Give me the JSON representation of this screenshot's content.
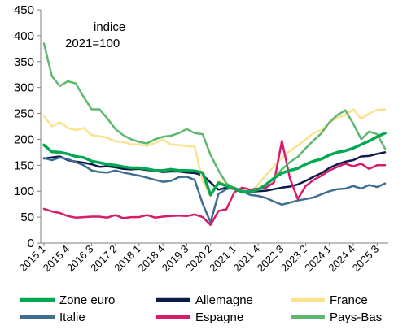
{
  "chart_data": {
    "type": "line",
    "annotation": "indice\n2021=100",
    "xlabel": "",
    "ylabel": "",
    "ylim": [
      0,
      450
    ],
    "yticks": [
      0,
      50,
      100,
      150,
      200,
      250,
      300,
      350,
      400,
      450
    ],
    "grid": false,
    "legend_position": "bottom",
    "x": [
      "2015 1",
      "2015 2",
      "2015 3",
      "2015 4",
      "2016 1",
      "2016 2",
      "2016 3",
      "2016 4",
      "2017 1",
      "2017 2",
      "2017 3",
      "2017 4",
      "2018 1",
      "2018 2",
      "2018 3",
      "2018 4",
      "2019 1",
      "2019 2",
      "2019 3",
      "2019 4",
      "2020 1",
      "2020 2",
      "2020 3",
      "2020 4",
      "2021 1",
      "2021 2",
      "2021 3",
      "2021 4",
      "2022 1",
      "2022 2",
      "2022 3",
      "2022 4",
      "2023 1",
      "2023 2",
      "2023 3",
      "2023 4",
      "2024 1",
      "2024 2",
      "2024 3",
      "2024 4",
      "2025 1",
      "2025 2",
      "2025 3",
      "2025 4"
    ],
    "x_tick_labels": [
      "2015 1",
      "2015 4",
      "2016 3",
      "2017 2",
      "2018 1",
      "2018 4",
      "2019 3",
      "2020 2",
      "2021 1",
      "2021 4",
      "2022 3",
      "2023 2",
      "2024 1",
      "2024 4",
      "2025 3"
    ],
    "series": [
      {
        "name": "Zone euro",
        "color": "#00A850",
        "width": 3.5,
        "values": [
          189,
          176,
          175,
          172,
          167,
          165,
          158,
          155,
          152,
          150,
          147,
          145,
          145,
          143,
          140,
          140,
          142,
          140,
          140,
          139,
          136,
          93,
          116,
          110,
          105,
          98,
          99,
          103,
          113,
          125,
          135,
          140,
          144,
          152,
          158,
          162,
          170,
          175,
          178,
          183,
          190,
          197,
          205,
          212
        ]
      },
      {
        "name": "Allemagne",
        "color": "#0D1B4B",
        "width": 2.5,
        "values": [
          163,
          165,
          167,
          160,
          157,
          155,
          152,
          147,
          148,
          146,
          143,
          142,
          143,
          141,
          139,
          137,
          138,
          138,
          136,
          135,
          131,
          117,
          103,
          107,
          104,
          101,
          99,
          100,
          101,
          104,
          107,
          109,
          113,
          120,
          128,
          135,
          145,
          152,
          157,
          160,
          167,
          168,
          172,
          175
        ]
      },
      {
        "name": "France",
        "color": "#FBE28F",
        "width": 2.5,
        "values": [
          245,
          225,
          233,
          222,
          218,
          222,
          208,
          206,
          203,
          196,
          195,
          190,
          190,
          187,
          193,
          200,
          190,
          189,
          187,
          186,
          120,
          90,
          120,
          112,
          104,
          98,
          97,
          113,
          131,
          148,
          165,
          178,
          188,
          200,
          212,
          218,
          232,
          242,
          247,
          258,
          240,
          250,
          257,
          258
        ]
      },
      {
        "name": "Italie",
        "color": "#3F6E91",
        "width": 2.5,
        "values": [
          164,
          160,
          165,
          162,
          156,
          150,
          140,
          137,
          136,
          140,
          136,
          133,
          130,
          126,
          122,
          118,
          120,
          127,
          128,
          122,
          76,
          40,
          95,
          104,
          107,
          100,
          93,
          91,
          87,
          80,
          74,
          78,
          82,
          85,
          88,
          94,
          100,
          104,
          105,
          110,
          105,
          112,
          108,
          115
        ]
      },
      {
        "name": "Espagne",
        "color": "#D81B6A",
        "width": 2.5,
        "values": [
          66,
          61,
          58,
          52,
          49,
          50,
          51,
          51,
          49,
          54,
          48,
          50,
          50,
          54,
          49,
          51,
          52,
          53,
          52,
          55,
          50,
          35,
          62,
          65,
          98,
          107,
          103,
          105,
          107,
          117,
          197,
          125,
          85,
          110,
          122,
          130,
          140,
          147,
          153,
          148,
          153,
          143,
          150,
          150
        ]
      },
      {
        "name": "Pays-Bas",
        "color": "#5FB86F",
        "width": 2.5,
        "values": [
          385,
          322,
          303,
          312,
          308,
          282,
          258,
          258,
          240,
          220,
          208,
          200,
          195,
          192,
          200,
          205,
          207,
          212,
          220,
          212,
          210,
          170,
          140,
          115,
          106,
          100,
          100,
          103,
          112,
          126,
          142,
          156,
          166,
          183,
          198,
          212,
          233,
          247,
          256,
          230,
          200,
          215,
          210,
          182
        ]
      }
    ]
  }
}
